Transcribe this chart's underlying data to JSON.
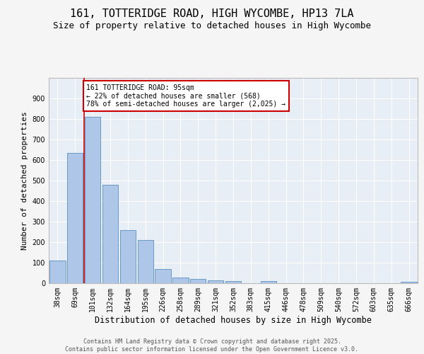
{
  "title1": "161, TOTTERIDGE ROAD, HIGH WYCOMBE, HP13 7LA",
  "title2": "Size of property relative to detached houses in High Wycombe",
  "xlabel": "Distribution of detached houses by size in High Wycombe",
  "ylabel": "Number of detached properties",
  "categories": [
    "38sqm",
    "69sqm",
    "101sqm",
    "132sqm",
    "164sqm",
    "195sqm",
    "226sqm",
    "258sqm",
    "289sqm",
    "321sqm",
    "352sqm",
    "383sqm",
    "415sqm",
    "446sqm",
    "478sqm",
    "509sqm",
    "540sqm",
    "572sqm",
    "603sqm",
    "635sqm",
    "666sqm"
  ],
  "values": [
    110,
    635,
    810,
    480,
    257,
    212,
    68,
    28,
    22,
    14,
    11,
    0,
    9,
    0,
    0,
    0,
    0,
    0,
    0,
    0,
    7
  ],
  "bar_color": "#aec6e8",
  "bar_edge_color": "#5a8fbe",
  "vline_index": 1.5,
  "vline_color": "#cc0000",
  "annotation_text": "161 TOTTERIDGE ROAD: 95sqm\n← 22% of detached houses are smaller (568)\n78% of semi-detached houses are larger (2,025) →",
  "annotation_box_color": "#ffffff",
  "annotation_box_edge_color": "#cc0000",
  "ylim": [
    0,
    1000
  ],
  "yticks": [
    0,
    100,
    200,
    300,
    400,
    500,
    600,
    700,
    800,
    900,
    1000
  ],
  "background_color": "#e8eef5",
  "plot_bg_color": "#e8eef5",
  "fig_bg_color": "#f5f5f5",
  "grid_color": "#ffffff",
  "footer_text": "Contains HM Land Registry data © Crown copyright and database right 2025.\nContains public sector information licensed under the Open Government Licence v3.0.",
  "title1_fontsize": 11,
  "title2_fontsize": 9,
  "xlabel_fontsize": 8.5,
  "ylabel_fontsize": 8,
  "tick_fontsize": 7,
  "annotation_fontsize": 7,
  "footer_fontsize": 6
}
